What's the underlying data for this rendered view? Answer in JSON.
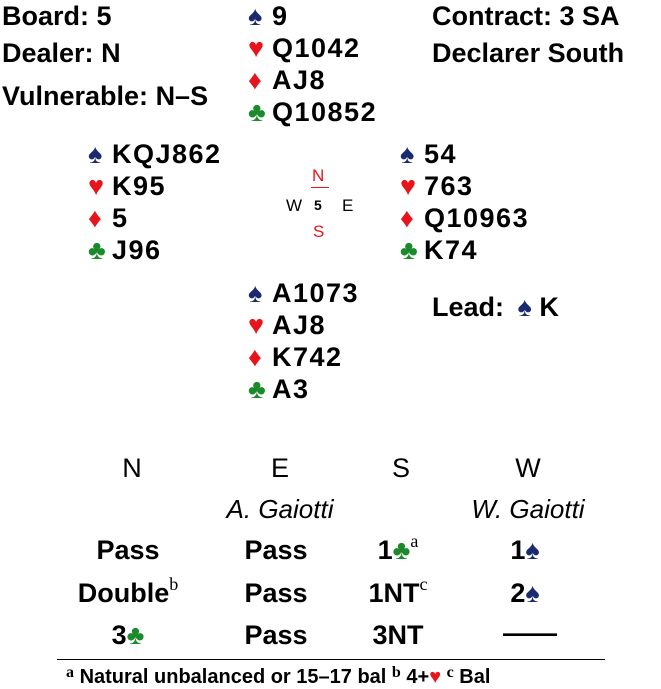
{
  "board": {
    "label": "Board:",
    "value": "5"
  },
  "dealer": {
    "label": "Dealer:",
    "value": "N"
  },
  "vulnerable": {
    "label": "Vulnerable:",
    "value": "N–S"
  },
  "contract": {
    "label": "Contract:",
    "value": "3 SA"
  },
  "declarer": {
    "label": "Declarer",
    "value": "South"
  },
  "lead": {
    "label": "Lead:",
    "card": "K"
  },
  "suit_symbols": {
    "spade": "♠",
    "heart": "♥",
    "diamond": "♦",
    "club": "♣"
  },
  "colors": {
    "spade": "#1a2a6e",
    "heart": "#e8141b",
    "diamond": "#e8141b",
    "club": "#1b8a2a"
  },
  "hands": {
    "north": {
      "spades": "9",
      "hearts": "Q1042",
      "diamonds": "AJ8",
      "clubs": "Q10852"
    },
    "west": {
      "spades": "KQJ862",
      "hearts": "K95",
      "diamonds": "5",
      "clubs": "J96"
    },
    "east": {
      "spades": "54",
      "hearts": "763",
      "diamonds": "Q10963",
      "clubs": "K74"
    },
    "south": {
      "spades": "A1073",
      "hearts": "AJ8",
      "diamonds": "K742",
      "clubs": "A3"
    }
  },
  "compass": {
    "n": "N",
    "s": "S",
    "w": "W",
    "e": "E",
    "board": "5"
  },
  "auction": {
    "headers": [
      "N",
      "E",
      "S",
      "W"
    ],
    "players": [
      "",
      "A. Gaiotti",
      "",
      "W. Gaiotti"
    ],
    "rows": [
      {
        "n": "Pass",
        "e": "Pass",
        "s": "1",
        "s_suit": "♣",
        "s_note": "a",
        "w": "1",
        "w_suit": "♠"
      },
      {
        "n": "Double",
        "n_note": "b",
        "e": "Pass",
        "s": "1NT",
        "s_note": "c",
        "w": "2",
        "w_suit": "♠"
      },
      {
        "n": "3",
        "n_suit": "♣",
        "e": "Pass",
        "s": "3NT",
        "w": "——"
      }
    ]
  },
  "footnotes": [
    {
      "mark": "a",
      "text": "Natural unbalanced or 15–17 bal"
    },
    {
      "mark": "b",
      "text": "4+",
      "suit": "♥"
    },
    {
      "mark": "c",
      "text": "Bal"
    }
  ]
}
